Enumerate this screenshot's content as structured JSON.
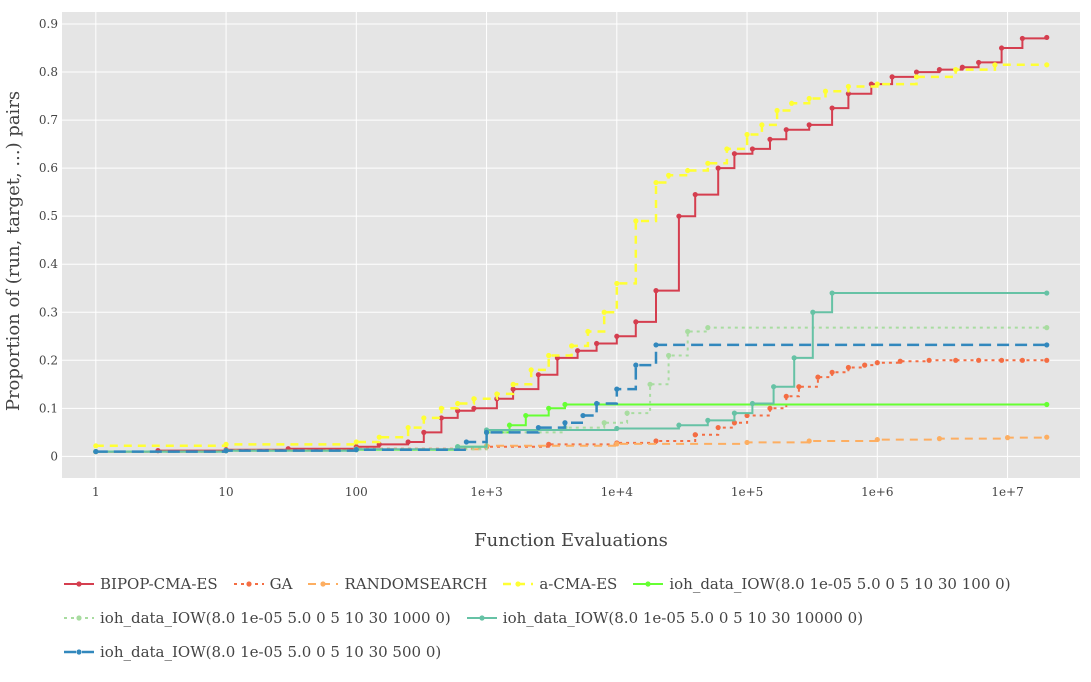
{
  "chart_data": {
    "type": "line",
    "xlabel": "Function Evaluations",
    "ylabel": "Proportion of (run, target, ...) pairs",
    "xscale": "log",
    "xlim": [
      0.55,
      36000000
    ],
    "ylim": [
      -0.045,
      0.925
    ],
    "grid": true,
    "legend_position": "bottom",
    "x_ticks": [
      {
        "value": 1,
        "label": "1"
      },
      {
        "value": 10,
        "label": "10"
      },
      {
        "value": 100,
        "label": "100"
      },
      {
        "value": 1000,
        "label": "1e+3"
      },
      {
        "value": 10000,
        "label": "1e+4"
      },
      {
        "value": 100000,
        "label": "1e+5"
      },
      {
        "value": 1000000,
        "label": "1e+6"
      },
      {
        "value": 10000000,
        "label": "1e+7"
      }
    ],
    "y_ticks": [
      {
        "value": 0,
        "label": "0"
      },
      {
        "value": 0.1,
        "label": "0.1"
      },
      {
        "value": 0.2,
        "label": "0.2"
      },
      {
        "value": 0.3,
        "label": "0.3"
      },
      {
        "value": 0.4,
        "label": "0.4"
      },
      {
        "value": 0.5,
        "label": "0.5"
      },
      {
        "value": 0.6,
        "label": "0.6"
      },
      {
        "value": 0.7,
        "label": "0.7"
      },
      {
        "value": 0.8,
        "label": "0.8"
      },
      {
        "value": 0.9,
        "label": "0.9"
      }
    ],
    "series": [
      {
        "name": "BIPOP-CMA-ES",
        "color": "#d53e4f",
        "dash": "solid",
        "width": 2,
        "x": [
          1,
          3,
          10,
          30,
          100,
          150,
          250,
          330,
          450,
          600,
          800,
          1200,
          1600,
          2500,
          3500,
          5000,
          7000,
          10000,
          14000,
          20000,
          30000,
          40000,
          60000,
          80000,
          110000,
          150000,
          200000,
          300000,
          450000,
          600000,
          900000,
          1300000,
          2000000,
          3000000,
          4500000,
          6000000,
          9000000,
          13000000,
          20000000
        ],
        "y": [
          0.01,
          0.012,
          0.014,
          0.016,
          0.02,
          0.025,
          0.03,
          0.05,
          0.08,
          0.095,
          0.1,
          0.12,
          0.14,
          0.17,
          0.205,
          0.22,
          0.235,
          0.25,
          0.28,
          0.345,
          0.5,
          0.545,
          0.6,
          0.63,
          0.64,
          0.66,
          0.68,
          0.69,
          0.725,
          0.755,
          0.775,
          0.79,
          0.8,
          0.805,
          0.81,
          0.82,
          0.85,
          0.87,
          0.872
        ]
      },
      {
        "name": "GA",
        "color": "#f46d43",
        "dash": "dot",
        "width": 2,
        "x": [
          1,
          10,
          100,
          1000,
          3000,
          10000,
          20000,
          40000,
          60000,
          80000,
          100000,
          150000,
          200000,
          250000,
          350000,
          450000,
          600000,
          800000,
          1000000,
          1500000,
          2500000,
          4000000,
          6000000,
          9000000,
          13000000,
          20000000
        ],
        "y": [
          0.01,
          0.013,
          0.016,
          0.02,
          0.025,
          0.028,
          0.032,
          0.045,
          0.06,
          0.07,
          0.085,
          0.1,
          0.125,
          0.145,
          0.165,
          0.175,
          0.185,
          0.19,
          0.195,
          0.198,
          0.2,
          0.2,
          0.2,
          0.2,
          0.2,
          0.2
        ]
      },
      {
        "name": "RANDOMSEARCH",
        "color": "#fdae61",
        "dash": "dash",
        "width": 2,
        "x": [
          1,
          10,
          100,
          1000,
          10000,
          100000,
          300000,
          1000000,
          3000000,
          10000000,
          20000000
        ],
        "y": [
          0.01,
          0.012,
          0.015,
          0.022,
          0.026,
          0.029,
          0.032,
          0.035,
          0.037,
          0.039,
          0.04
        ]
      },
      {
        "name": "a-CMA-ES",
        "color": "#ffff33",
        "dash": "dash",
        "width": 2.5,
        "x": [
          1,
          10,
          100,
          150,
          250,
          330,
          450,
          600,
          800,
          1200,
          1600,
          2200,
          3000,
          4500,
          6000,
          8000,
          10000,
          14000,
          20000,
          25000,
          35000,
          50000,
          70000,
          100000,
          130000,
          170000,
          220000,
          300000,
          400000,
          600000,
          1000000,
          2000000,
          4000000,
          8000000,
          20000000
        ],
        "y": [
          0.022,
          0.025,
          0.03,
          0.04,
          0.06,
          0.08,
          0.1,
          0.11,
          0.12,
          0.13,
          0.15,
          0.18,
          0.21,
          0.23,
          0.26,
          0.3,
          0.36,
          0.49,
          0.57,
          0.585,
          0.595,
          0.61,
          0.64,
          0.67,
          0.69,
          0.72,
          0.735,
          0.745,
          0.76,
          0.77,
          0.775,
          0.79,
          0.805,
          0.815,
          0.815
        ]
      },
      {
        "name": "ioh_data_IOW(8.0 1e-05 5.0 0 5 10 30 100 0)",
        "color": "#66ff33",
        "dash": "solid",
        "width": 2,
        "x": [
          1,
          10,
          100,
          600,
          1000,
          1500,
          2000,
          3000,
          4000,
          20000000
        ],
        "y": [
          0.01,
          0.012,
          0.014,
          0.02,
          0.05,
          0.065,
          0.085,
          0.1,
          0.108,
          0.108
        ]
      },
      {
        "name": "ioh_data_IOW(8.0 1e-05 5.0 0 5 10 30 1000 0)",
        "color": "#a8dca0",
        "dash": "dot",
        "width": 2,
        "x": [
          1,
          10,
          100,
          1000,
          4000,
          8000,
          12000,
          18000,
          25000,
          35000,
          50000,
          20000000
        ],
        "y": [
          0.01,
          0.012,
          0.015,
          0.05,
          0.06,
          0.07,
          0.09,
          0.15,
          0.21,
          0.26,
          0.268,
          0.268
        ]
      },
      {
        "name": "ioh_data_IOW(8.0 1e-05 5.0 0 5 10 30 10000 0)",
        "color": "#66c2a5",
        "dash": "solid",
        "width": 2,
        "x": [
          1,
          10,
          100,
          600,
          1000,
          10000,
          30000,
          50000,
          80000,
          110000,
          160000,
          230000,
          320000,
          450000,
          20000000
        ],
        "y": [
          0.01,
          0.012,
          0.015,
          0.02,
          0.055,
          0.058,
          0.065,
          0.075,
          0.09,
          0.11,
          0.145,
          0.205,
          0.3,
          0.34,
          0.34
        ]
      },
      {
        "name": "ioh_data_IOW(8.0 1e-05 5.0 0 5 10 30 500 0)",
        "color": "#3288bd",
        "dash": "longdash",
        "width": 2.5,
        "x": [
          1,
          10,
          100,
          700,
          1000,
          2500,
          4000,
          5500,
          7000,
          10000,
          14000,
          20000,
          20000000
        ],
        "y": [
          0.01,
          0.012,
          0.014,
          0.03,
          0.05,
          0.06,
          0.07,
          0.085,
          0.11,
          0.14,
          0.19,
          0.232,
          0.232
        ]
      }
    ]
  }
}
